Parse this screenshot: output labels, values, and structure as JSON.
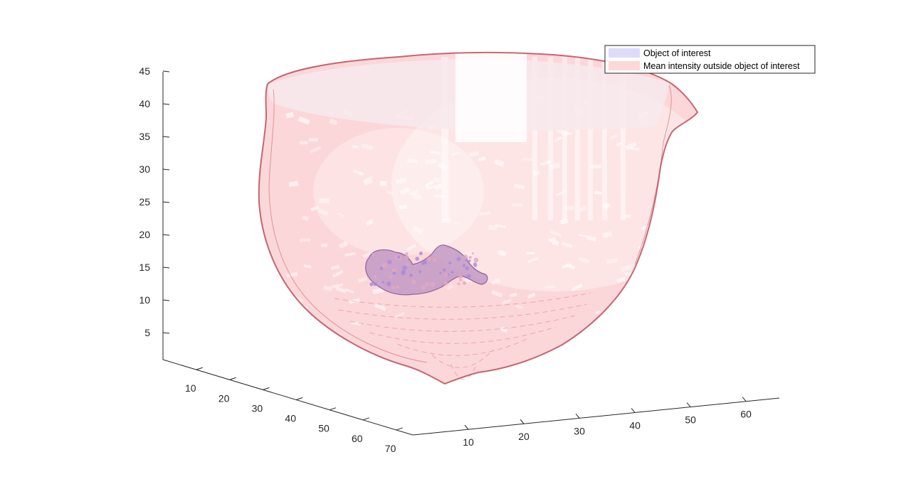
{
  "chart_data": {
    "type": "3d-surface",
    "title": "",
    "xlabel": "",
    "ylabel": "",
    "zlabel": "",
    "x_axis": {
      "ticks": [
        10,
        20,
        30,
        40,
        50,
        60,
        70
      ],
      "range": [
        0,
        75
      ]
    },
    "y_axis": {
      "ticks": [
        10,
        20,
        30,
        40,
        50,
        60
      ],
      "range": [
        0,
        66
      ]
    },
    "z_axis": {
      "ticks": [
        5,
        10,
        15,
        20,
        25,
        30,
        35,
        40,
        45
      ],
      "range": [
        0,
        45
      ]
    },
    "grid": false,
    "legend_position": "top-right",
    "series": [
      {
        "name": "Object of interest",
        "color": "#dcdcfa",
        "edge_color": "#9a6fb0"
      },
      {
        "name": "Mean intensity outside object of interest",
        "color": "#fcd9d9",
        "edge_color": "#b23a48"
      }
    ]
  }
}
